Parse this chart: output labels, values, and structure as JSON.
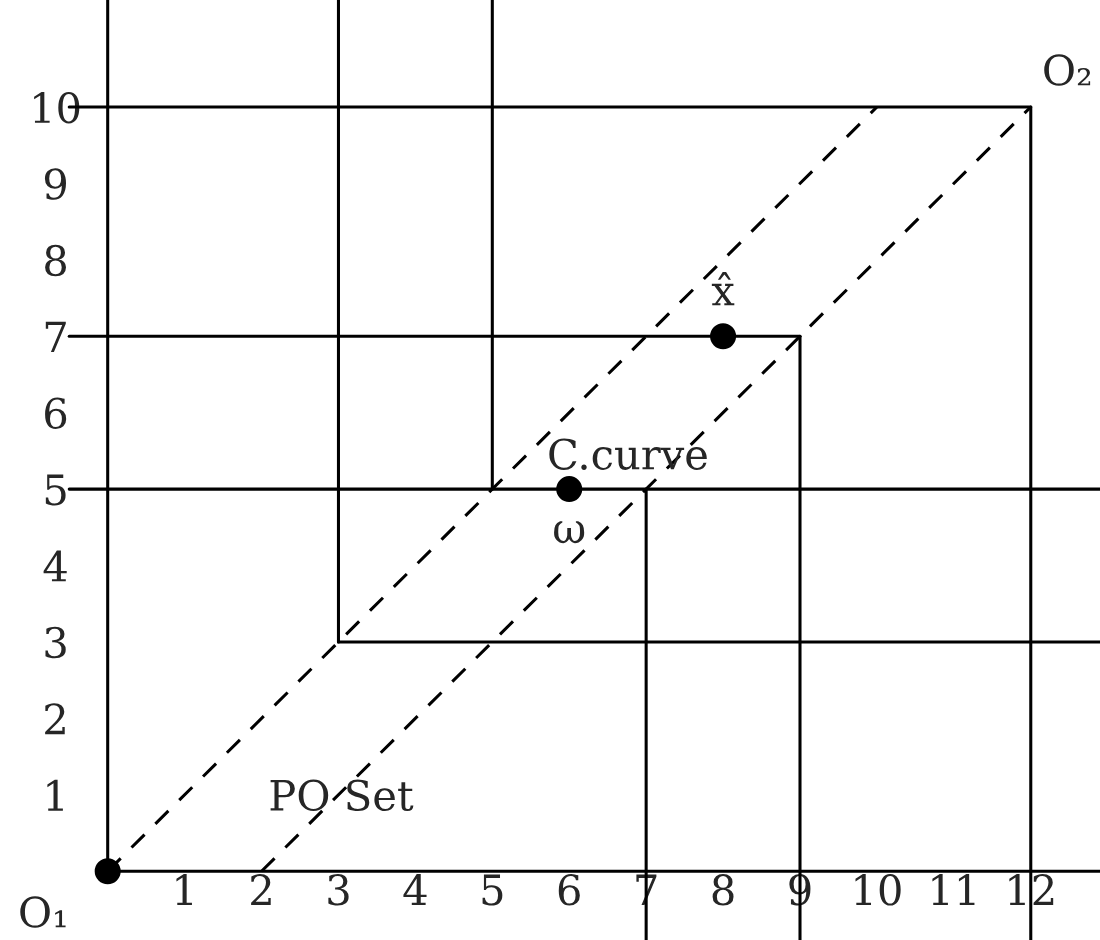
{
  "chart_data": {
    "type": "line",
    "xlim": [
      -1.4,
      12.9
    ],
    "ylim": [
      -0.9,
      11.4
    ],
    "xticks": [
      1,
      2,
      3,
      4,
      5,
      6,
      7,
      8,
      9,
      10,
      11,
      12
    ],
    "yticks": [
      1,
      2,
      3,
      4,
      5,
      6,
      7,
      8,
      9,
      10
    ],
    "grid": false,
    "legend": false,
    "series": [
      {
        "color": "#000000",
        "line_style": "solid",
        "x": [
          0,
          0
        ],
        "values": [
          0,
          11.4
        ]
      },
      {
        "color": "#000000",
        "line_style": "solid",
        "x": [
          3,
          3
        ],
        "values": [
          3,
          11.4
        ]
      },
      {
        "color": "#000000",
        "line_style": "solid",
        "x": [
          5,
          5
        ],
        "values": [
          5,
          11.4
        ]
      },
      {
        "color": "#000000",
        "line_style": "solid",
        "x": [
          -0.5,
          12
        ],
        "values": [
          10,
          10
        ]
      },
      {
        "color": "#000000",
        "line_style": "solid",
        "x": [
          -0.5,
          9
        ],
        "values": [
          7,
          7
        ]
      },
      {
        "color": "#000000",
        "line_style": "solid",
        "x": [
          -0.5,
          12.9
        ],
        "values": [
          5,
          5
        ]
      },
      {
        "color": "#000000",
        "line_style": "solid",
        "x": [
          3,
          12.9
        ],
        "values": [
          3,
          3
        ]
      },
      {
        "color": "#000000",
        "line_style": "solid",
        "x": [
          0,
          12.9
        ],
        "values": [
          0,
          0
        ]
      },
      {
        "color": "#000000",
        "line_style": "solid",
        "x": [
          7,
          7
        ],
        "values": [
          5,
          -0.9
        ]
      },
      {
        "color": "#000000",
        "line_style": "solid",
        "x": [
          9,
          9
        ],
        "values": [
          7,
          -0.9
        ]
      },
      {
        "color": "#000000",
        "line_style": "solid",
        "x": [
          12,
          12
        ],
        "values": [
          10,
          -0.9
        ]
      },
      {
        "color": "#000000",
        "line_style": "dashed",
        "x": [
          0,
          10
        ],
        "values": [
          0,
          10
        ]
      },
      {
        "color": "#000000",
        "line_style": "dashed",
        "x": [
          2,
          12
        ],
        "values": [
          0,
          10
        ]
      },
      {
        "type": "scatter",
        "color": "#000000",
        "marker": "circle",
        "x": [
          0,
          6,
          8
        ],
        "values": [
          0,
          5,
          7
        ]
      }
    ],
    "annotations": [
      {
        "text": "O₁",
        "x": 0,
        "y": 0
      },
      {
        "text": "O₂",
        "x": 12,
        "y": 10
      },
      {
        "text": "x̂",
        "x": 8,
        "y": 7
      },
      {
        "text": "ω",
        "x": 6,
        "y": 5
      },
      {
        "text": "C.curve",
        "x": 6,
        "y": 5
      },
      "PO Set"
    ]
  }
}
